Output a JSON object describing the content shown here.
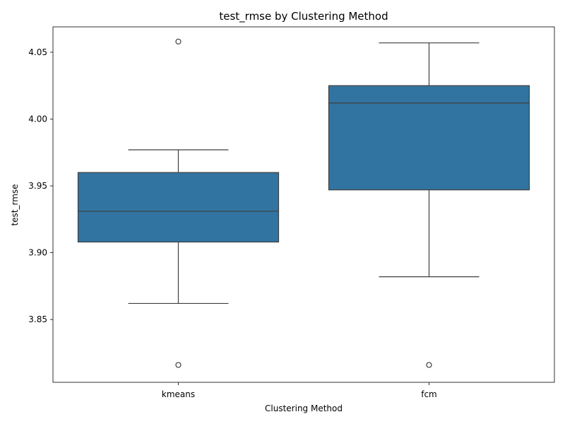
{
  "chart_data": {
    "type": "box",
    "title": "test_rmse by Clustering Method",
    "xlabel": "Clustering Method",
    "ylabel": "test_rmse",
    "categories": [
      "kmeans",
      "fcm"
    ],
    "ylim": [
      3.803,
      4.069
    ],
    "yticks": [
      3.85,
      3.9,
      3.95,
      4.0,
      4.05
    ],
    "ytick_labels": [
      "3.85",
      "3.90",
      "3.95",
      "4.00",
      "4.05"
    ],
    "boxes": [
      {
        "category": "kmeans",
        "whisker_low": 3.862,
        "q1": 3.908,
        "median": 3.931,
        "q3": 3.96,
        "whisker_high": 3.977,
        "outliers": [
          4.058,
          3.816
        ]
      },
      {
        "category": "fcm",
        "whisker_low": 3.882,
        "q1": 3.947,
        "median": 4.012,
        "q3": 4.025,
        "whisker_high": 4.057,
        "outliers": [
          3.816
        ]
      }
    ],
    "color": "#3274a1",
    "grid": false,
    "legend": false
  }
}
